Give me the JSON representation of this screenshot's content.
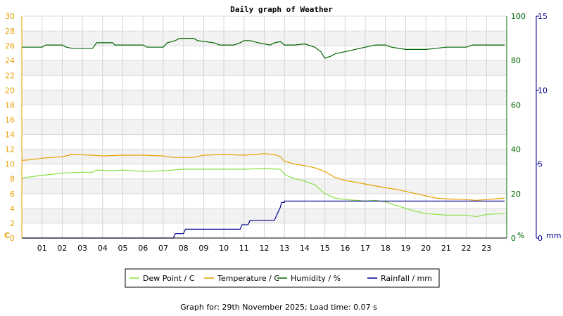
{
  "chart_data": {
    "type": "line",
    "title": "Daily graph of Weather",
    "x": {
      "range": [
        0,
        24
      ],
      "ticks": [
        "01",
        "02",
        "03",
        "04",
        "05",
        "06",
        "07",
        "08",
        "09",
        "10",
        "11",
        "12",
        "13",
        "14",
        "15",
        "16",
        "17",
        "18",
        "19",
        "20",
        "21",
        "22",
        "23"
      ]
    },
    "axes": {
      "temp": {
        "label": "C",
        "range": [
          0,
          30
        ],
        "ticks": [
          "0",
          "2",
          "4",
          "6",
          "8",
          "10",
          "12",
          "14",
          "16",
          "18",
          "20",
          "22",
          "24",
          "26",
          "28",
          "30"
        ],
        "color": "#e8a000"
      },
      "humidity": {
        "label": "%",
        "range": [
          0,
          100
        ],
        "ticks": [
          "0",
          "20",
          "40",
          "60",
          "80",
          "100"
        ],
        "color": "#006400"
      },
      "rain": {
        "label": "mm",
        "range": [
          0,
          15
        ],
        "ticks": [
          "0",
          "5",
          "10",
          "15"
        ],
        "color": "#00008b"
      }
    },
    "series": [
      {
        "name": "Dew Point / C",
        "axis": "temp",
        "color": "#88e040",
        "points": [
          [
            0,
            8.1
          ],
          [
            0.5,
            8.3
          ],
          [
            1,
            8.5
          ],
          [
            1.5,
            8.6
          ],
          [
            2,
            8.8
          ],
          [
            3,
            8.9
          ],
          [
            3.5,
            8.9
          ],
          [
            3.7,
            9.2
          ],
          [
            4.5,
            9.1
          ],
          [
            5,
            9.2
          ],
          [
            6,
            9.0
          ],
          [
            7,
            9.1
          ],
          [
            7.5,
            9.2
          ],
          [
            8,
            9.3
          ],
          [
            9,
            9.3
          ],
          [
            10,
            9.3
          ],
          [
            11,
            9.3
          ],
          [
            12,
            9.4
          ],
          [
            12.8,
            9.3
          ],
          [
            13,
            8.6
          ],
          [
            13.5,
            8.0
          ],
          [
            14,
            7.7
          ],
          [
            14.5,
            7.2
          ],
          [
            15,
            6.0
          ],
          [
            15.5,
            5.4
          ],
          [
            16,
            5.2
          ],
          [
            17,
            5.0
          ],
          [
            17.5,
            5.1
          ],
          [
            18,
            4.9
          ],
          [
            19,
            4.0
          ],
          [
            19.5,
            3.6
          ],
          [
            20,
            3.3
          ],
          [
            21,
            3.1
          ],
          [
            22,
            3.1
          ],
          [
            22.5,
            2.9
          ],
          [
            23,
            3.2
          ],
          [
            23.9,
            3.3
          ]
        ]
      },
      {
        "name": "Temperature / C",
        "axis": "temp",
        "color": "#e8a000",
        "points": [
          [
            0,
            10.5
          ],
          [
            0.5,
            10.6
          ],
          [
            1,
            10.8
          ],
          [
            2,
            11.0
          ],
          [
            2.5,
            11.3
          ],
          [
            3.5,
            11.2
          ],
          [
            4,
            11.1
          ],
          [
            5,
            11.2
          ],
          [
            6,
            11.2
          ],
          [
            7,
            11.1
          ],
          [
            7.5,
            10.9
          ],
          [
            8.5,
            10.9
          ],
          [
            9,
            11.2
          ],
          [
            10,
            11.3
          ],
          [
            11,
            11.2
          ],
          [
            11.5,
            11.3
          ],
          [
            12,
            11.4
          ],
          [
            12.5,
            11.3
          ],
          [
            12.8,
            11.0
          ],
          [
            13,
            10.4
          ],
          [
            13.5,
            10.0
          ],
          [
            14,
            9.8
          ],
          [
            14.5,
            9.5
          ],
          [
            15,
            9.0
          ],
          [
            15.5,
            8.2
          ],
          [
            16,
            7.8
          ],
          [
            17,
            7.3
          ],
          [
            18,
            6.8
          ],
          [
            18.5,
            6.6
          ],
          [
            19,
            6.3
          ],
          [
            19.5,
            6.0
          ],
          [
            20,
            5.7
          ],
          [
            20.5,
            5.4
          ],
          [
            21,
            5.3
          ],
          [
            22,
            5.2
          ],
          [
            22.5,
            5.1
          ],
          [
            23,
            5.2
          ],
          [
            23.9,
            5.4
          ]
        ]
      },
      {
        "name": "Humidity / %",
        "axis": "humidity",
        "color": "#006400",
        "points": [
          [
            0,
            86
          ],
          [
            1,
            86
          ],
          [
            1.2,
            87
          ],
          [
            2,
            87
          ],
          [
            2.2,
            86
          ],
          [
            2.5,
            85.5
          ],
          [
            3.5,
            85.5
          ],
          [
            3.7,
            88
          ],
          [
            4.5,
            88
          ],
          [
            4.6,
            87
          ],
          [
            6,
            87
          ],
          [
            6.2,
            86
          ],
          [
            7,
            86
          ],
          [
            7.2,
            88
          ],
          [
            7.6,
            89
          ],
          [
            7.8,
            90
          ],
          [
            8.5,
            90
          ],
          [
            8.7,
            89
          ],
          [
            9.5,
            88
          ],
          [
            9.8,
            87
          ],
          [
            10.5,
            87
          ],
          [
            10.8,
            88
          ],
          [
            11,
            89
          ],
          [
            11.3,
            89
          ],
          [
            11.7,
            88
          ],
          [
            12.3,
            87
          ],
          [
            12.5,
            88
          ],
          [
            12.8,
            88.5
          ],
          [
            13,
            87
          ],
          [
            13.5,
            87
          ],
          [
            14,
            87.5
          ],
          [
            14.5,
            86
          ],
          [
            14.8,
            84
          ],
          [
            15,
            81
          ],
          [
            15.3,
            82
          ],
          [
            15.5,
            83
          ],
          [
            16,
            84
          ],
          [
            16.5,
            85
          ],
          [
            17,
            86
          ],
          [
            17.5,
            87
          ],
          [
            18,
            87
          ],
          [
            18.3,
            86
          ],
          [
            19,
            85
          ],
          [
            20,
            85
          ],
          [
            20.5,
            85.5
          ],
          [
            21,
            86
          ],
          [
            22,
            86
          ],
          [
            22.3,
            87
          ],
          [
            23,
            87
          ],
          [
            23.9,
            87
          ]
        ]
      },
      {
        "name": "Rainfall / mm",
        "axis": "rain",
        "color": "#00008b",
        "points": [
          [
            0,
            0
          ],
          [
            7.5,
            0
          ],
          [
            7.6,
            0.3
          ],
          [
            8,
            0.3
          ],
          [
            8.1,
            0.6
          ],
          [
            10.8,
            0.6
          ],
          [
            10.9,
            0.9
          ],
          [
            11.2,
            0.9
          ],
          [
            11.3,
            1.2
          ],
          [
            12.5,
            1.2
          ],
          [
            12.6,
            1.5
          ],
          [
            12.7,
            1.8
          ],
          [
            12.8,
            2.1
          ],
          [
            12.85,
            2.4
          ],
          [
            13,
            2.4
          ],
          [
            13,
            2.5
          ],
          [
            23.9,
            2.5
          ]
        ]
      }
    ],
    "grid": true,
    "legend": "bottom-center",
    "footer": "Graph for: 29th November 2025; Load time: 0.07 s"
  },
  "legend_items": [
    {
      "name": "Dew Point / C",
      "color": "#88e040"
    },
    {
      "name": "Temperature / C",
      "color": "#e8a000"
    },
    {
      "name": "Humidity / %",
      "color": "#006400"
    },
    {
      "name": "Rainfall / mm",
      "color": "#00008b"
    }
  ]
}
